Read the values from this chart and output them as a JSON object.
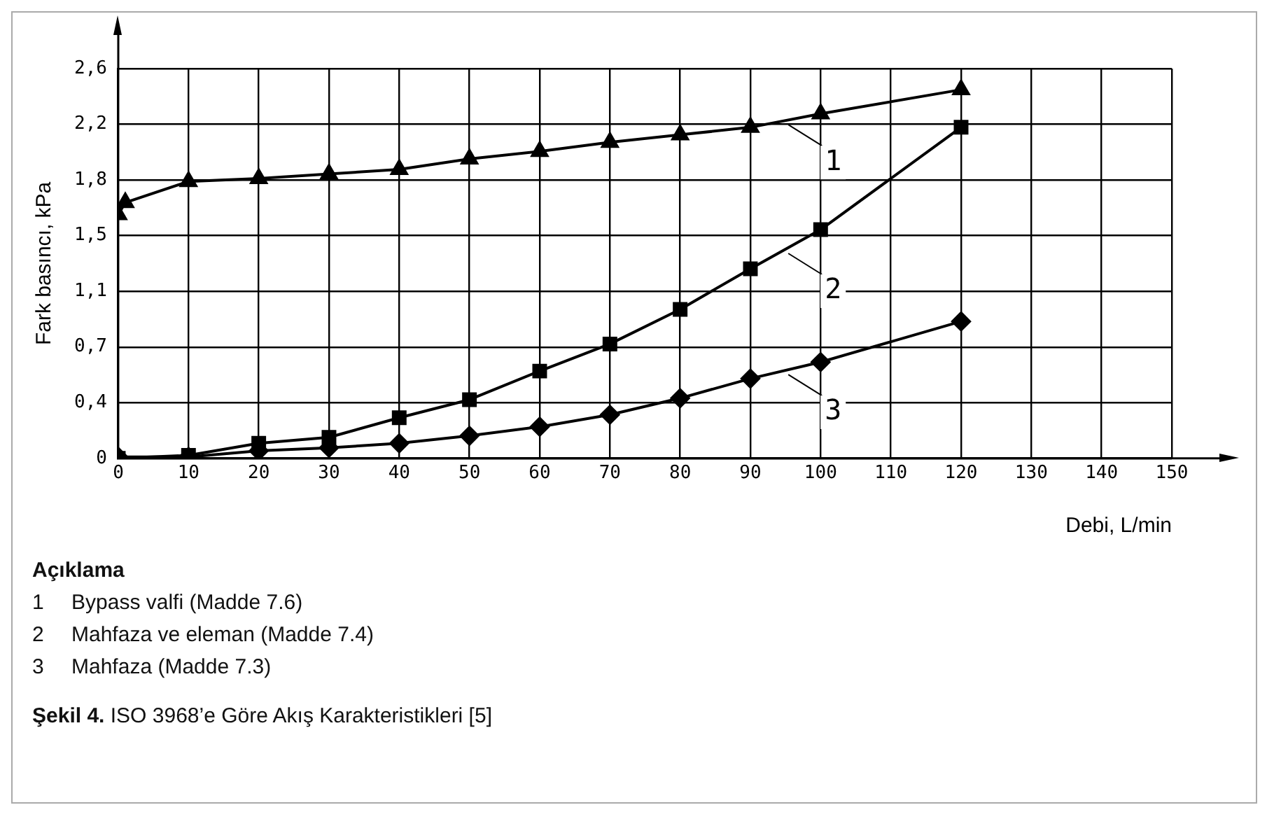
{
  "chart_data": {
    "type": "line",
    "xlabel": "Debi, L/min",
    "ylabel": "Fark basıncı, kPa",
    "xlim": [
      0,
      150
    ],
    "xticks": [
      0,
      10,
      20,
      30,
      40,
      50,
      60,
      70,
      80,
      90,
      100,
      110,
      120,
      130,
      140,
      150
    ],
    "ylim": [
      0,
      2.59
    ],
    "yticks": [
      {
        "value": 0,
        "label": "0"
      },
      {
        "value": 0.37,
        "label": "0,4"
      },
      {
        "value": 0.74,
        "label": "0,7"
      },
      {
        "value": 1.11,
        "label": "1,1"
      },
      {
        "value": 1.48,
        "label": "1,5"
      },
      {
        "value": 1.85,
        "label": "1,8"
      },
      {
        "value": 2.22,
        "label": "2,2"
      },
      {
        "value": 2.59,
        "label": "2,6"
      }
    ],
    "grid": true,
    "legend": "right",
    "line_style": "solid",
    "series": [
      {
        "name": "1",
        "color": "#000000",
        "marker": "triangle",
        "x": [
          0,
          1,
          10,
          20,
          30,
          40,
          50,
          60,
          70,
          80,
          90,
          100,
          120
        ],
        "values": [
          1.62,
          1.7,
          1.84,
          1.86,
          1.89,
          1.92,
          1.99,
          2.04,
          2.1,
          2.15,
          2.2,
          2.29,
          2.45
        ]
      },
      {
        "name": "2",
        "color": "#000000",
        "marker": "square",
        "x": [
          0,
          10,
          20,
          30,
          40,
          50,
          60,
          70,
          80,
          90,
          100,
          120
        ],
        "values": [
          0,
          0.02,
          0.1,
          0.14,
          0.27,
          0.39,
          0.58,
          0.76,
          0.99,
          1.26,
          1.52,
          2.2
        ]
      },
      {
        "name": "3",
        "color": "#000000",
        "marker": "diamond",
        "x": [
          0,
          10,
          20,
          30,
          40,
          50,
          60,
          70,
          80,
          90,
          100,
          120
        ],
        "values": [
          0.01,
          0.01,
          0.05,
          0.07,
          0.1,
          0.15,
          0.21,
          0.29,
          0.4,
          0.53,
          0.64,
          0.91
        ]
      }
    ],
    "annotations": [
      "Açıklama",
      "1 Bypass valfi (Madde 7.6)",
      "2 Mahfaza ve eleman (Madde 7.4)",
      "3 Mahfaza (Madde 7.3)",
      "Şekil 4. ISO 3968’e Göre Akış Karakteristikleri [5]"
    ]
  }
}
